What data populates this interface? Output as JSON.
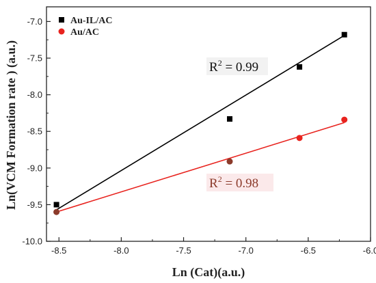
{
  "chart_data": {
    "type": "scatter",
    "xlabel": "Ln (Cat)(a.u.)",
    "ylabel": "Ln(VCM Formation rate ) (a.u.)",
    "xlim": [
      -8.6,
      -6.0
    ],
    "ylim": [
      -10.0,
      -6.8
    ],
    "xticks": [
      -8.5,
      -8.0,
      -7.5,
      -7.0,
      -6.5,
      -6.0
    ],
    "yticks": [
      -10.0,
      -9.5,
      -9.0,
      -8.5,
      -8.0,
      -7.5,
      -7.0
    ],
    "xtick_labels": [
      "-8.5",
      "-8.0",
      "-7.5",
      "-7.0",
      "-6.5",
      "-6.0"
    ],
    "ytick_labels": [
      "-10.0",
      "-9.5",
      "-9.0",
      "-8.5",
      "-8.0",
      "-7.5",
      "-7.0"
    ],
    "grid": false,
    "legend_position": "top-left",
    "series": [
      {
        "name": "Au-IL/AC",
        "marker": "square",
        "color": "#000000",
        "x": [
          -8.52,
          -7.13,
          -6.57,
          -6.21
        ],
        "y": [
          -9.5,
          -8.33,
          -7.62,
          -7.18
        ],
        "fit": {
          "x0": -8.52,
          "y0": -9.57,
          "x1": -6.21,
          "y1": -7.19
        },
        "annotation": {
          "prefix": "R",
          "sup": "2",
          "suffix": " = 0.99",
          "color": "#111111"
        }
      },
      {
        "name": "Au/AC",
        "marker": "circle",
        "color": "#e8231e",
        "x": [
          -8.52,
          -7.13,
          -6.57,
          -6.21
        ],
        "y": [
          -9.6,
          -8.91,
          -8.59,
          -8.34
        ],
        "fit": {
          "x0": -8.52,
          "y0": -9.6,
          "x1": -6.21,
          "y1": -8.38
        },
        "annotation": {
          "prefix": "R",
          "sup": "2",
          "suffix": " = 0.98",
          "color": "#8b3a2a"
        }
      }
    ],
    "special_point_colors": {
      "Au/AC": [
        "#8b3a2a",
        "#8b3a2a",
        "#e8231e",
        "#e8231e"
      ]
    }
  }
}
